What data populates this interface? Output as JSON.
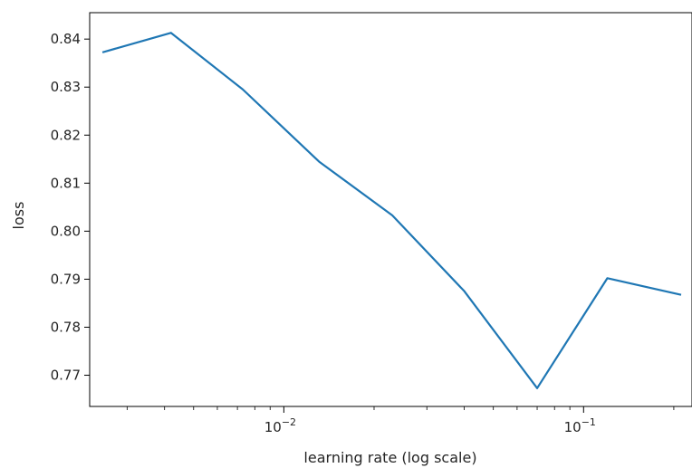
{
  "chart_data": {
    "type": "line",
    "title": "",
    "xlabel": "learning rate (log scale)",
    "ylabel": "loss",
    "xscale": "log",
    "xlim": [
      0.00225,
      0.23
    ],
    "ylim": [
      0.7635,
      0.8455
    ],
    "grid": false,
    "legend": "none",
    "line_color": "#1f77b4",
    "x_ticks": [
      {
        "value": 0.01,
        "base": "10",
        "exponent": "−2"
      },
      {
        "value": 0.1,
        "base": "10",
        "exponent": "−1"
      }
    ],
    "x_minor_ticks": [
      0.003,
      0.004,
      0.005,
      0.006,
      0.007,
      0.008,
      0.009,
      0.02,
      0.03,
      0.04,
      0.05,
      0.06,
      0.07,
      0.08,
      0.09,
      0.2
    ],
    "y_ticks": [
      "0.77",
      "0.78",
      "0.79",
      "0.80",
      "0.81",
      "0.82",
      "0.83",
      "0.84"
    ],
    "series": [
      {
        "x": [
          0.0025,
          0.0042,
          0.0073,
          0.0131,
          0.023,
          0.04,
          0.07,
          0.12,
          0.21
        ],
        "y": [
          0.8373,
          0.8413,
          0.8295,
          0.8145,
          0.8033,
          0.7875,
          0.7673,
          0.7902,
          0.7868
        ]
      }
    ]
  }
}
